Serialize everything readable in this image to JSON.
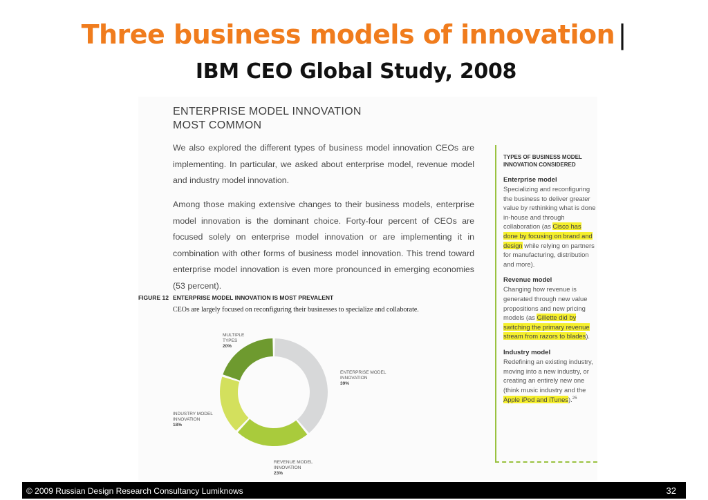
{
  "slide": {
    "title": "Three business models of innovation",
    "title_separator": "|",
    "subtitle": "IBM CEO Global Study, 2008"
  },
  "report": {
    "heading_line1": "ENTERPRISE MODEL INNOVATION",
    "heading_line2": "MOST COMMON",
    "paragraph1": "We also explored the different types of business model innovation CEOs are implementing. In particular, we asked about enterprise model, revenue model and industry model innovation.",
    "paragraph2": "Among those making extensive changes to their business models, enterprise model innovation is the dominant choice. Forty-four percent of CEOs are focused solely on enterprise model innovation or are implementing it in combination with other forms of business model innovation. This trend toward enterprise model innovation is even more pronounced in emerging economies (53 percent).",
    "figure_label": "FIGURE 12",
    "figure_title": "ENTERPRISE MODEL INNOVATION IS MOST PREVALENT",
    "figure_caption": "CEOs are largely focused on reconfiguring their businesses to specialize and collaborate."
  },
  "chart_data": {
    "type": "pie",
    "donut": true,
    "title": "ENTERPRISE MODEL INNOVATION IS MOST PREVALENT",
    "categories": [
      "ENTERPRISE MODEL INNOVATION",
      "REVENUE MODEL INNOVATION",
      "INDUSTRY MODEL INNOVATION",
      "MULTIPLE TYPES"
    ],
    "values": [
      39,
      23,
      18,
      20
    ],
    "value_labels": [
      "39%",
      "23%",
      "18%",
      "20%"
    ],
    "colors": [
      "#d7d8d9",
      "#a9cb3c",
      "#d3e05d",
      "#6e9a2f"
    ]
  },
  "chart_labels": {
    "enterprise_1": "ENTERPRISE MODEL",
    "enterprise_2": "INNOVATION",
    "enterprise_pct": "39%",
    "revenue_1": "REVENUE MODEL",
    "revenue_2": "INNOVATION",
    "revenue_pct": "23%",
    "industry_1": "INDUSTRY MODEL",
    "industry_2": "INNOVATION",
    "industry_pct": "18%",
    "multiple_1": "MULTIPLE",
    "multiple_2": "TYPES",
    "multiple_pct": "20%"
  },
  "sidebar": {
    "heading_line1": "TYPES OF BUSINESS MODEL",
    "heading_line2": "INNOVATION CONSIDERED",
    "enterprise_title": "Enterprise model",
    "enterprise_text": "Specializing and reconfiguring the business to deliver greater value by rethinking what is done in-house and through collaboration (as",
    "enterprise_highlight": "Cisco has done by focusing on brand and design",
    "enterprise_tail": "while relying on partners for manufacturing, distribution and more).",
    "revenue_title": "Revenue model",
    "revenue_text": "Changing how revenue is generated through new value propositions and new pricing models (as",
    "revenue_highlight": "Gillette did by switching the primary revenue stream from razors to blades",
    "revenue_tail": ").",
    "industry_title": "Industry model",
    "industry_text": "Redefining an existing industry, moving into a new industry, or creating an entirely new one (think music industry and the",
    "industry_highlight": "Apple iPod and iTunes",
    "industry_tail": ").",
    "footnote": "25",
    "accent_color": "#9ac240",
    "highlight_color": "#f5ef2c"
  },
  "footer": {
    "copyright": "© 2009 Russian Design Research Consultancy Lumiknows",
    "page_number": "32"
  }
}
